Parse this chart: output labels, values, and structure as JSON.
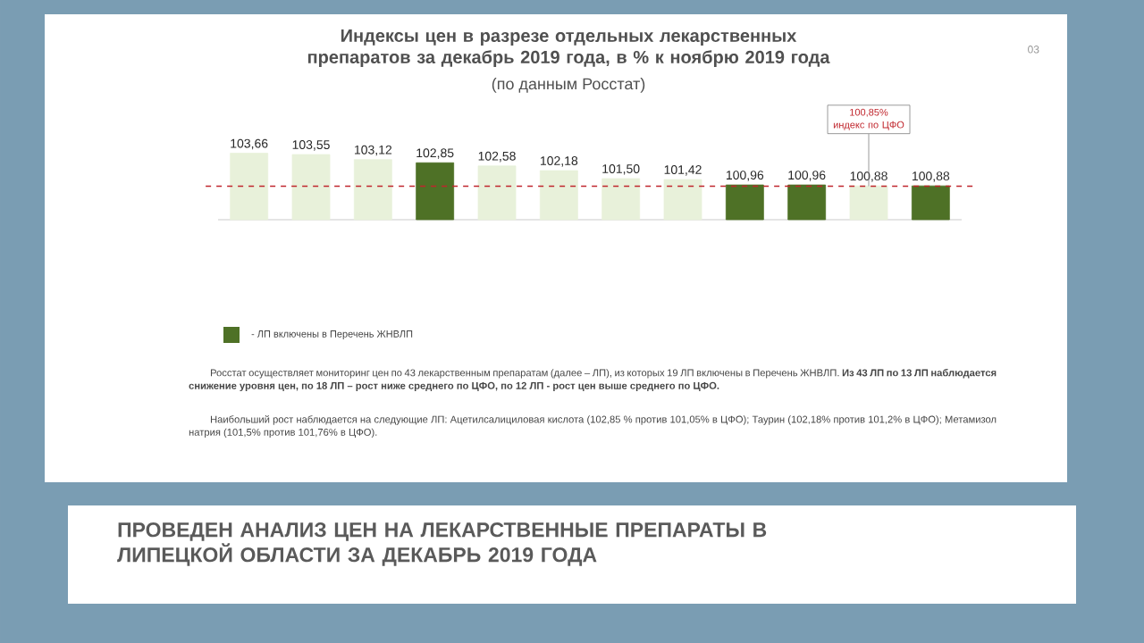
{
  "chart_data": {
    "type": "bar",
    "title": "Индексы цен в разрезе отдельных лекарственных препаратов за декабрь 2019 года, в % к ноябрю 2019 года",
    "subtitle": "(по данным Росстат)",
    "categories": [
      null,
      null,
      null,
      null,
      null,
      null,
      null,
      null,
      null,
      null,
      null,
      null
    ],
    "values": [
      103.66,
      103.55,
      103.12,
      102.85,
      102.58,
      102.18,
      101.5,
      101.42,
      100.96,
      100.96,
      100.88,
      100.88
    ],
    "colors": [
      "#e8f1da",
      "#e8f1da",
      "#e8f1da",
      "#4e7126",
      "#e8f1da",
      "#e8f1da",
      "#e8f1da",
      "#e8f1da",
      "#4e7126",
      "#4e7126",
      "#e8f1da",
      "#4e7126"
    ],
    "value_labels": [
      "103,66",
      "103,55",
      "103,12",
      "102,85",
      "102,58",
      "102,18",
      "101,50",
      "101,42",
      "100,96",
      "100,96",
      "100,88",
      "100,88"
    ],
    "ylim": [
      98,
      105
    ],
    "ref_lines": [
      {
        "axis": "y",
        "value": 100.85,
        "label": "100,85% индекс по ЦФО",
        "color": "#c0262d",
        "line_style": "dashed"
      }
    ],
    "annotations": [
      "03",
      "- ЛП включены в Перечень ЖНВЛП",
      "Росстат осуществляет мониторинг цен по 43 лекарственным препаратам (далее – ЛП), из которых 19 ЛП включены в Перечень ЖНВЛП. **Из 43 ЛП по 13 ЛП наблюдается снижение уровня цен, по 18 ЛП – рост ниже среднего по ЦФО, по 12 ЛП - рост цен выше среднего по ЦФО.**",
      "Наибольший рост наблюдается на следующие ЛП: Ацетилсалициловая кислота (102,85 % против 101,05% в ЦФО); Таурин (102,18% против 101,2% в ЦФО); Метамизол натрия (101,5% против 101,76% в ЦФО).",
      "ПРОВЕДЕН АНАЛИЗ ЦЕН НА ЛЕКАРСТВЕННЫЕ ПРЕПАРАТЫ В ЛИПЕЦКОЙ ОБЛАСТИ ЗА ДЕКАБРЬ 2019 ГОДА"
    ]
  }
}
